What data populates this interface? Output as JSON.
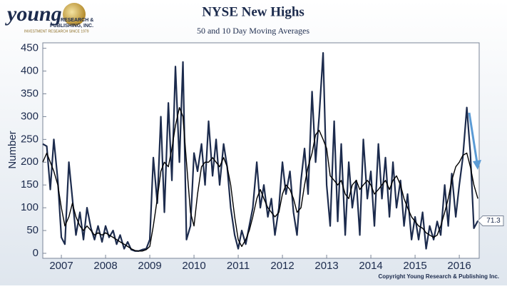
{
  "logo": {
    "name": "young",
    "line1": "RESEARCH &",
    "line2": "PUBLISHING, INC.",
    "tagline": "INVESTMENT RESEARCH SINCE 1979"
  },
  "chart_data": {
    "type": "line",
    "title": "NYSE New Highs",
    "subtitle": "50 and 10 Day Moving Averages",
    "y_label": "Number",
    "footer": "Copyright Young Research & Publishing Inc.",
    "x": [
      2006.58,
      2006.67,
      2006.75,
      2006.83,
      2006.92,
      2007,
      2007.08,
      2007.17,
      2007.25,
      2007.33,
      2007.42,
      2007.5,
      2007.58,
      2007.67,
      2007.75,
      2007.83,
      2007.92,
      2008,
      2008.08,
      2008.17,
      2008.25,
      2008.33,
      2008.42,
      2008.5,
      2008.58,
      2008.67,
      2008.75,
      2008.83,
      2008.92,
      2009,
      2009.08,
      2009.17,
      2009.25,
      2009.33,
      2009.42,
      2009.5,
      2009.58,
      2009.67,
      2009.75,
      2009.83,
      2009.92,
      2010,
      2010.08,
      2010.17,
      2010.25,
      2010.33,
      2010.42,
      2010.5,
      2010.58,
      2010.67,
      2010.75,
      2010.83,
      2010.92,
      2011,
      2011.08,
      2011.17,
      2011.25,
      2011.33,
      2011.42,
      2011.5,
      2011.58,
      2011.67,
      2011.75,
      2011.83,
      2011.92,
      2012,
      2012.08,
      2012.17,
      2012.25,
      2012.33,
      2012.42,
      2012.5,
      2012.58,
      2012.67,
      2012.75,
      2012.83,
      2012.92,
      2013,
      2013.08,
      2013.17,
      2013.25,
      2013.33,
      2013.42,
      2013.5,
      2013.58,
      2013.67,
      2013.75,
      2013.83,
      2013.92,
      2014,
      2014.08,
      2014.17,
      2014.25,
      2014.33,
      2014.42,
      2014.5,
      2014.58,
      2014.67,
      2014.75,
      2014.83,
      2014.92,
      2015,
      2015.08,
      2015.17,
      2015.25,
      2015.33,
      2015.42,
      2015.5,
      2015.58,
      2015.67,
      2015.75,
      2015.83,
      2015.92,
      2016,
      2016.08,
      2016.17,
      2016.25,
      2016.33,
      2016.42
    ],
    "series": [
      {
        "color": "#1c2b4d",
        "values": [
          240,
          235,
          140,
          250,
          160,
          35,
          20,
          200,
          120,
          40,
          90,
          30,
          100,
          55,
          30,
          60,
          25,
          60,
          35,
          50,
          20,
          40,
          10,
          25,
          8,
          5,
          5,
          8,
          10,
          30,
          210,
          110,
          300,
          90,
          330,
          160,
          410,
          200,
          420,
          30,
          60,
          220,
          180,
          240,
          150,
          290,
          170,
          250,
          150,
          240,
          190,
          100,
          40,
          10,
          50,
          20,
          60,
          100,
          200,
          100,
          150,
          80,
          120,
          40,
          100,
          200,
          130,
          180,
          90,
          40,
          160,
          230,
          130,
          355,
          200,
          300,
          440,
          150,
          60,
          290,
          70,
          240,
          40,
          200,
          100,
          160,
          40,
          250,
          120,
          180,
          60,
          240,
          120,
          210,
          80,
          200,
          100,
          160,
          60,
          130,
          30,
          80,
          30,
          90,
          10,
          60,
          30,
          70,
          40,
          150,
          60,
          175,
          80,
          150,
          210,
          320,
          220,
          55,
          71.3
        ]
      },
      {
        "color": "#000000",
        "values": [
          200,
          220,
          200,
          180,
          150,
          100,
          60,
          80,
          110,
          80,
          60,
          50,
          60,
          50,
          40,
          45,
          40,
          45,
          40,
          35,
          30,
          25,
          20,
          15,
          10,
          6,
          5,
          5,
          8,
          15,
          60,
          120,
          180,
          200,
          190,
          230,
          280,
          320,
          300,
          200,
          90,
          60,
          130,
          190,
          200,
          200,
          210,
          200,
          190,
          210,
          190,
          150,
          80,
          30,
          15,
          30,
          50,
          80,
          120,
          140,
          120,
          100,
          90,
          80,
          90,
          130,
          150,
          140,
          120,
          90,
          100,
          150,
          190,
          220,
          260,
          270,
          250,
          230,
          170,
          160,
          150,
          160,
          130,
          120,
          150,
          160,
          140,
          150,
          160,
          150,
          130,
          140,
          150,
          160,
          140,
          160,
          170,
          150,
          120,
          100,
          80,
          70,
          60,
          55,
          45,
          40,
          35,
          40,
          60,
          90,
          120,
          160,
          190,
          200,
          215,
          220,
          190,
          150,
          120
        ]
      }
    ],
    "xlim": [
      2006.58,
      2016.45
    ],
    "xticks": [
      2007,
      2008,
      2009,
      2010,
      2011,
      2012,
      2013,
      2014,
      2015,
      2016
    ],
    "ylim": [
      -11,
      462
    ],
    "yticks": [
      0,
      50,
      100,
      150,
      200,
      250,
      300,
      350,
      400,
      450
    ]
  }
}
